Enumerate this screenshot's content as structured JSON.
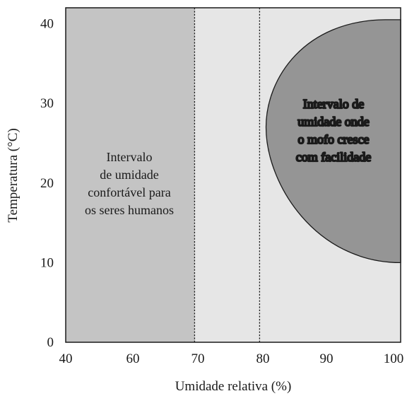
{
  "chart_data": {
    "type": "area",
    "title": "",
    "xlabel": "Umidade relativa (%)",
    "ylabel": "Temperatura (°C)",
    "x_ticks": [
      {
        "value": 40,
        "label": "40"
      },
      {
        "value": 60,
        "label": "60"
      },
      {
        "value": 70,
        "label": "70"
      },
      {
        "value": 80,
        "label": "80"
      },
      {
        "value": 90,
        "label": "90"
      },
      {
        "value": 100,
        "label": "100"
      }
    ],
    "y_ticks": [
      {
        "value": 0,
        "label": "0"
      },
      {
        "value": 10,
        "label": "10"
      },
      {
        "value": 20,
        "label": "20"
      },
      {
        "value": 30,
        "label": "30"
      },
      {
        "value": 40,
        "label": "40"
      }
    ],
    "ylim": [
      0,
      42
    ],
    "regions": [
      {
        "id": "comfort",
        "x_range": [
          40,
          69.5
        ],
        "lines": [
          "Intervalo",
          "de umidade",
          "confortável para",
          "os seres humanos"
        ],
        "color": "#c4c4c4"
      },
      {
        "id": "mold",
        "x_min_at_center": 80.5,
        "center_y": 27,
        "y_range": [
          10,
          40.5
        ],
        "lines": [
          "Intervalo de",
          "umidade onde",
          "o mofo cresce",
          "com facilidade"
        ],
        "color": "#959595"
      }
    ],
    "dividers": [
      69.5,
      79.5
    ],
    "colors": {
      "background": "#e6e6e6",
      "comfort": "#c4c4c4",
      "mold": "#959595",
      "axis": "#1a1a1a"
    }
  }
}
